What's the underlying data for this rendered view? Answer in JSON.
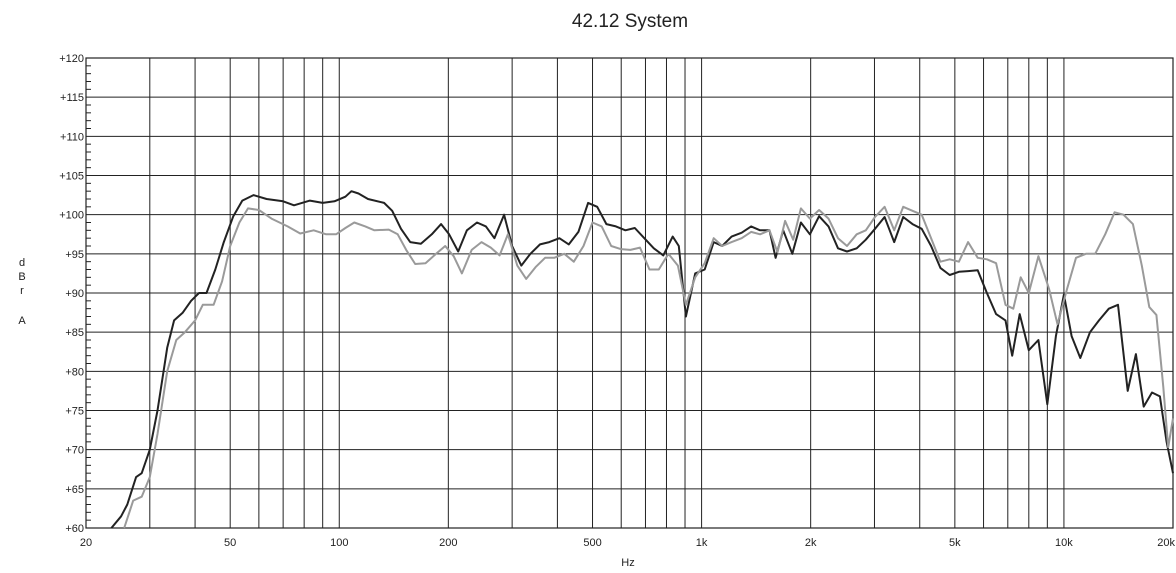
{
  "chart_data": {
    "type": "line",
    "title": "42.12 System",
    "xlabel": "Hz",
    "ylabel": [
      "d",
      "B",
      "r",
      "A"
    ],
    "x_scale": "log",
    "xlim": [
      20,
      20000
    ],
    "ylim": [
      60,
      120
    ],
    "grid": true,
    "x_ticks": [
      {
        "value": 20,
        "label": "20"
      },
      {
        "value": 50,
        "label": "50"
      },
      {
        "value": 100,
        "label": "100"
      },
      {
        "value": 200,
        "label": "200"
      },
      {
        "value": 500,
        "label": "500"
      },
      {
        "value": 1000,
        "label": "1k"
      },
      {
        "value": 2000,
        "label": "2k"
      },
      {
        "value": 5000,
        "label": "5k"
      },
      {
        "value": 10000,
        "label": "10k"
      },
      {
        "value": 20000,
        "label": "20k"
      }
    ],
    "x_gridlines": [
      30,
      40,
      50,
      60,
      70,
      80,
      90,
      100,
      200,
      300,
      400,
      500,
      600,
      700,
      800,
      900,
      1000,
      2000,
      3000,
      4000,
      5000,
      6000,
      7000,
      8000,
      9000,
      10000
    ],
    "y_ticks": [
      {
        "value": 60,
        "label": "+60"
      },
      {
        "value": 65,
        "label": "+65"
      },
      {
        "value": 70,
        "label": "+70"
      },
      {
        "value": 75,
        "label": "+75"
      },
      {
        "value": 80,
        "label": "+80"
      },
      {
        "value": 85,
        "label": "+85"
      },
      {
        "value": 90,
        "label": "+90"
      },
      {
        "value": 95,
        "label": "+95"
      },
      {
        "value": 100,
        "label": "+100"
      },
      {
        "value": 105,
        "label": "+105"
      },
      {
        "value": 110,
        "label": "+110"
      },
      {
        "value": 115,
        "label": "+115"
      },
      {
        "value": 120,
        "label": "+120"
      }
    ],
    "series": [
      {
        "color": "#222222",
        "points": [
          [
            23.5,
            60
          ],
          [
            25,
            61.5
          ],
          [
            26,
            63
          ],
          [
            27.5,
            66.5
          ],
          [
            28.5,
            67
          ],
          [
            30,
            70
          ],
          [
            31.5,
            75
          ],
          [
            33.5,
            83
          ],
          [
            35,
            86.5
          ],
          [
            37,
            87.5
          ],
          [
            39,
            89
          ],
          [
            41,
            90
          ],
          [
            43,
            90
          ],
          [
            45.5,
            93
          ],
          [
            48,
            96.5
          ],
          [
            51,
            99.8
          ],
          [
            54,
            101.8
          ],
          [
            58,
            102.5
          ],
          [
            63,
            102
          ],
          [
            70,
            101.7
          ],
          [
            75,
            101.2
          ],
          [
            83,
            101.8
          ],
          [
            90,
            101.5
          ],
          [
            97,
            101.7
          ],
          [
            104,
            102.3
          ],
          [
            108,
            103
          ],
          [
            113,
            102.7
          ],
          [
            120,
            102
          ],
          [
            133,
            101.5
          ],
          [
            140,
            100.5
          ],
          [
            148,
            98.2
          ],
          [
            157,
            96.5
          ],
          [
            168,
            96.3
          ],
          [
            180,
            97.5
          ],
          [
            191,
            98.8
          ],
          [
            201,
            97.5
          ],
          [
            213,
            95.3
          ],
          [
            225,
            98
          ],
          [
            240,
            99
          ],
          [
            254,
            98.5
          ],
          [
            268,
            97
          ],
          [
            285,
            100
          ],
          [
            300,
            96
          ],
          [
            318,
            93.5
          ],
          [
            337,
            95
          ],
          [
            358,
            96.2
          ],
          [
            380,
            96.5
          ],
          [
            405,
            97
          ],
          [
            430,
            96.2
          ],
          [
            457,
            97.8
          ],
          [
            486,
            101.5
          ],
          [
            515,
            101
          ],
          [
            546,
            98.8
          ],
          [
            580,
            98.5
          ],
          [
            616,
            98
          ],
          [
            654,
            98.3
          ],
          [
            695,
            97
          ],
          [
            738,
            95.7
          ],
          [
            784,
            94.8
          ],
          [
            832,
            97.2
          ],
          [
            865,
            96
          ],
          [
            905,
            87
          ],
          [
            960,
            92.5
          ],
          [
            1020,
            93
          ],
          [
            1080,
            96.5
          ],
          [
            1140,
            96
          ],
          [
            1210,
            97.2
          ],
          [
            1290,
            97.7
          ],
          [
            1370,
            98.5
          ],
          [
            1450,
            98
          ],
          [
            1540,
            98
          ],
          [
            1600,
            94.5
          ],
          [
            1680,
            98
          ],
          [
            1780,
            95
          ],
          [
            1880,
            99
          ],
          [
            1990,
            97.5
          ],
          [
            2110,
            99.8
          ],
          [
            2240,
            98.5
          ],
          [
            2380,
            95.7
          ],
          [
            2520,
            95.3
          ],
          [
            2680,
            95.7
          ],
          [
            2840,
            96.8
          ],
          [
            3010,
            98.2
          ],
          [
            3200,
            99.7
          ],
          [
            3400,
            96.5
          ],
          [
            3600,
            99.7
          ],
          [
            3820,
            98.8
          ],
          [
            4050,
            98.2
          ],
          [
            4300,
            96
          ],
          [
            4560,
            93.2
          ],
          [
            4840,
            92.3
          ],
          [
            5130,
            92.7
          ],
          [
            5440,
            92.8
          ],
          [
            5780,
            92.9
          ],
          [
            6130,
            90
          ],
          [
            6500,
            87.3
          ],
          [
            6900,
            86.5
          ],
          [
            7200,
            82
          ],
          [
            7550,
            87.3
          ],
          [
            8000,
            82.7
          ],
          [
            8500,
            84
          ],
          [
            9000,
            75.8
          ],
          [
            9500,
            84.5
          ],
          [
            10000,
            89.8
          ],
          [
            10500,
            84.5
          ],
          [
            11100,
            81.7
          ],
          [
            11800,
            85
          ],
          [
            12500,
            86.5
          ],
          [
            13300,
            88
          ],
          [
            14100,
            88.5
          ],
          [
            15000,
            77.5
          ],
          [
            15800,
            82.2
          ],
          [
            16600,
            75.5
          ],
          [
            17500,
            77.3
          ],
          [
            18400,
            76.8
          ],
          [
            19200,
            71
          ],
          [
            20000,
            67
          ]
        ]
      },
      {
        "color": "#9a9a9a",
        "points": [
          [
            25.5,
            60
          ],
          [
            27,
            63.5
          ],
          [
            28.5,
            64
          ],
          [
            30,
            66.5
          ],
          [
            31.5,
            72
          ],
          [
            33.5,
            80
          ],
          [
            35.5,
            84
          ],
          [
            37.5,
            85
          ],
          [
            40,
            86.5
          ],
          [
            42,
            88.5
          ],
          [
            45,
            88.5
          ],
          [
            47.5,
            91.5
          ],
          [
            50,
            96
          ],
          [
            53,
            99
          ],
          [
            56,
            100.8
          ],
          [
            60,
            100.6
          ],
          [
            65,
            99.5
          ],
          [
            72,
            98.5
          ],
          [
            78,
            97.6
          ],
          [
            85,
            98
          ],
          [
            92,
            97.5
          ],
          [
            98,
            97.5
          ],
          [
            104,
            98.3
          ],
          [
            110,
            99
          ],
          [
            118,
            98.5
          ],
          [
            125,
            98
          ],
          [
            137,
            98.1
          ],
          [
            145,
            97.5
          ],
          [
            153,
            95.5
          ],
          [
            162,
            93.7
          ],
          [
            173,
            93.8
          ],
          [
            185,
            95
          ],
          [
            196,
            96
          ],
          [
            207,
            94.7
          ],
          [
            218,
            92.5
          ],
          [
            232,
            95.5
          ],
          [
            247,
            96.5
          ],
          [
            262,
            95.8
          ],
          [
            277,
            94.8
          ],
          [
            292,
            97.5
          ],
          [
            310,
            93.5
          ],
          [
            328,
            91.8
          ],
          [
            348,
            93.3
          ],
          [
            370,
            94.5
          ],
          [
            392,
            94.5
          ],
          [
            418,
            95
          ],
          [
            444,
            94
          ],
          [
            472,
            96
          ],
          [
            500,
            99
          ],
          [
            530,
            98.5
          ],
          [
            563,
            96
          ],
          [
            598,
            95.6
          ],
          [
            636,
            95.5
          ],
          [
            676,
            95.8
          ],
          [
            718,
            93
          ],
          [
            762,
            93
          ],
          [
            810,
            95
          ],
          [
            860,
            93.5
          ],
          [
            905,
            88.5
          ],
          [
            960,
            92
          ],
          [
            1020,
            93.8
          ],
          [
            1080,
            97
          ],
          [
            1140,
            96
          ],
          [
            1210,
            96.5
          ],
          [
            1290,
            97
          ],
          [
            1370,
            97.8
          ],
          [
            1450,
            97.5
          ],
          [
            1540,
            98
          ],
          [
            1620,
            95.2
          ],
          [
            1700,
            99.2
          ],
          [
            1790,
            96.8
          ],
          [
            1880,
            100.8
          ],
          [
            1990,
            99.5
          ],
          [
            2110,
            100.6
          ],
          [
            2240,
            99.5
          ],
          [
            2380,
            97
          ],
          [
            2520,
            96
          ],
          [
            2680,
            97.5
          ],
          [
            2840,
            98
          ],
          [
            3010,
            99.7
          ],
          [
            3200,
            101
          ],
          [
            3400,
            98
          ],
          [
            3600,
            101
          ],
          [
            3820,
            100.5
          ],
          [
            4050,
            100
          ],
          [
            4300,
            97
          ],
          [
            4560,
            94
          ],
          [
            4840,
            94.3
          ],
          [
            5130,
            94
          ],
          [
            5440,
            96.5
          ],
          [
            5780,
            94.5
          ],
          [
            6130,
            94.3
          ],
          [
            6500,
            93.8
          ],
          [
            6900,
            88.5
          ],
          [
            7250,
            88
          ],
          [
            7600,
            92
          ],
          [
            8000,
            90
          ],
          [
            8500,
            94.7
          ],
          [
            9100,
            90.5
          ],
          [
            9600,
            86
          ],
          [
            10200,
            90.5
          ],
          [
            10800,
            94.5
          ],
          [
            11500,
            95
          ],
          [
            12200,
            95
          ],
          [
            13000,
            97.5
          ],
          [
            13800,
            100.3
          ],
          [
            14600,
            100
          ],
          [
            15500,
            98.8
          ],
          [
            16400,
            93.5
          ],
          [
            17200,
            88.2
          ],
          [
            18000,
            87.2
          ],
          [
            18800,
            78
          ],
          [
            19400,
            70.3
          ],
          [
            20000,
            74
          ]
        ]
      }
    ]
  }
}
